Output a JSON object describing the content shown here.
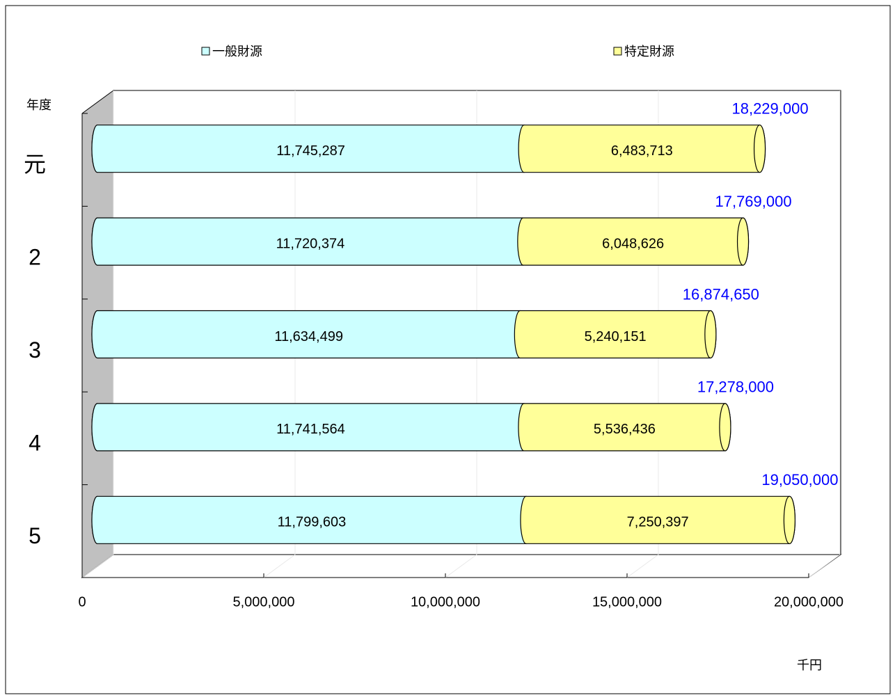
{
  "chart_data": {
    "type": "bar3d-stacked",
    "y_axis_label": "年度",
    "x_axis_label": "千円",
    "categories": [
      "元",
      "2",
      "3",
      "4",
      "5"
    ],
    "series": [
      {
        "name": "一般財源",
        "color": "#ccffff",
        "values": [
          11745287,
          11720374,
          11634499,
          11741564,
          11799603
        ],
        "value_labels": [
          "11,745,287",
          "11,720,374",
          "11,634,499",
          "11,741,564",
          "11,799,603"
        ]
      },
      {
        "name": "特定財源",
        "color": "#ffff99",
        "values": [
          6483713,
          6048626,
          5240151,
          5536436,
          7250397
        ],
        "value_labels": [
          "6,483,713",
          "6,048,626",
          "5,240,151",
          "5,536,436",
          "7,250,397"
        ]
      }
    ],
    "totals": {
      "color": "#0000ff",
      "values": [
        18229000,
        17769000,
        16874650,
        17278000,
        19050000
      ],
      "value_labels": [
        "18,229,000",
        "17,769,000",
        "16,874,650",
        "17,278,000",
        "19,050,000"
      ]
    },
    "xlim": [
      0,
      20000000
    ],
    "xticks": [
      0,
      {
        "value": 5000000,
        "label": "5,000,000"
      },
      {
        "value": 10000000,
        "label": "10,000,000"
      },
      {
        "value": 15000000,
        "label": "15,000,000"
      },
      {
        "value": 20000000,
        "label": "20,000,000"
      }
    ],
    "grid": true
  }
}
